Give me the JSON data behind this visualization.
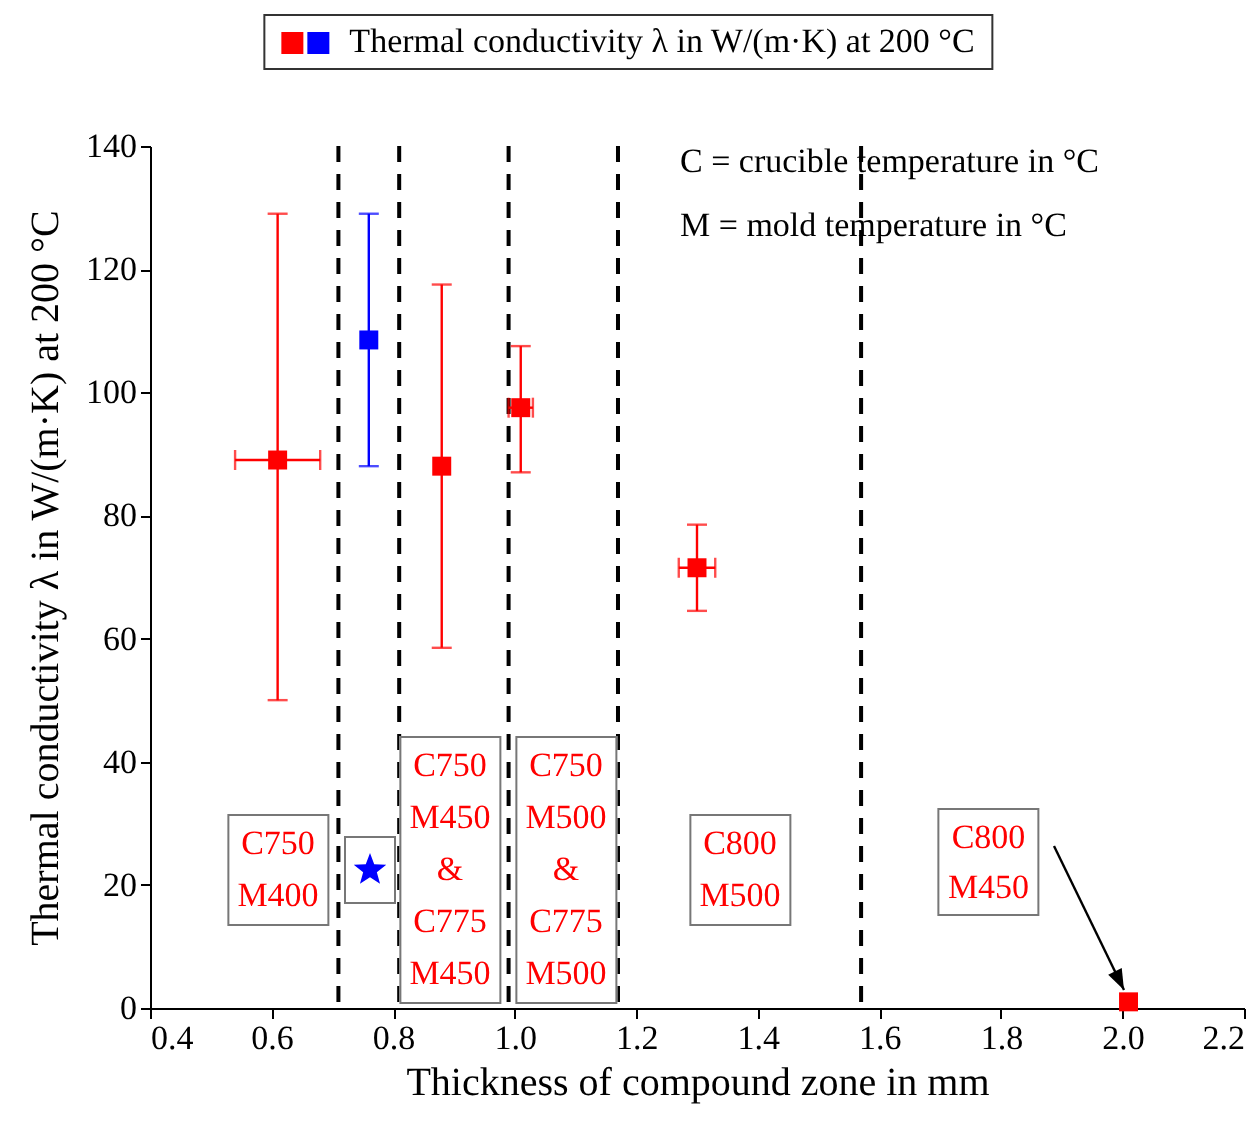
{
  "chart_data": {
    "type": "scatter",
    "xlabel": "Thickness of compound zone in mm",
    "ylabel": "Thermal conductivity λ in W/(m·K) at 200 °C",
    "x": [
      0.61,
      0.76,
      0.88,
      1.01,
      1.3,
      2.01
    ],
    "series": [
      {
        "name": "Thermal conductivity λ in W/(m·K) at 200 °C",
        "colors": [
          "#ff0000",
          "#0000ff",
          "#ff0000",
          "#ff0000",
          "#ff0000",
          "#ff0000"
        ],
        "values": [
          89,
          108.5,
          88,
          97.5,
          71.5,
          1
        ],
        "errors": [
          [
            50,
            129
          ],
          [
            88,
            129
          ],
          [
            58.5,
            117.5
          ],
          [
            87,
            107.5
          ],
          [
            64.5,
            78.5
          ],
          null
        ],
        "xerrors": [
          [
            0.54,
            0.68
          ],
          null,
          null,
          [
            0.99,
            1.03
          ],
          [
            1.27,
            1.33
          ],
          null
        ]
      }
    ],
    "marker": "square",
    "legend": "top",
    "grid": false,
    "xlim": [
      0.4,
      2.2
    ],
    "xticks": [
      0.4,
      0.6,
      0.8,
      {
        "value": 1,
        "label": "1.0"
      },
      1.2,
      1.4,
      1.6,
      1.8,
      {
        "value": 2,
        "label": "2.0"
      },
      2.2
    ],
    "ylim": [
      0,
      140
    ],
    "yticks": [
      0,
      20,
      40,
      60,
      80,
      100,
      120,
      140
    ],
    "ref_lines": [
      {
        "axis": "x",
        "value": 0.71,
        "color": "#000000",
        "line_style": "dashed"
      },
      {
        "axis": "x",
        "value": 0.81,
        "color": "#000000",
        "line_style": "dashed"
      },
      {
        "axis": "x",
        "value": 0.99,
        "color": "#000000",
        "line_style": "dashed"
      },
      {
        "axis": "x",
        "value": 1.17,
        "color": "#000000",
        "line_style": "dashed"
      },
      {
        "axis": "x",
        "value": 1.57,
        "color": "#000000",
        "line_style": "dashed"
      }
    ],
    "annotations": [
      "C = crucible temperature in °C",
      "M = mold temperature in °C",
      "C750\nM400",
      "C750\nM450\n&\nC775\nM450",
      "C750\nM500\n&\nC775\nM500",
      "C800\nM500",
      {
        "text": "C800\nM450",
        "x": 2.01,
        "y": 1
      }
    ]
  }
}
